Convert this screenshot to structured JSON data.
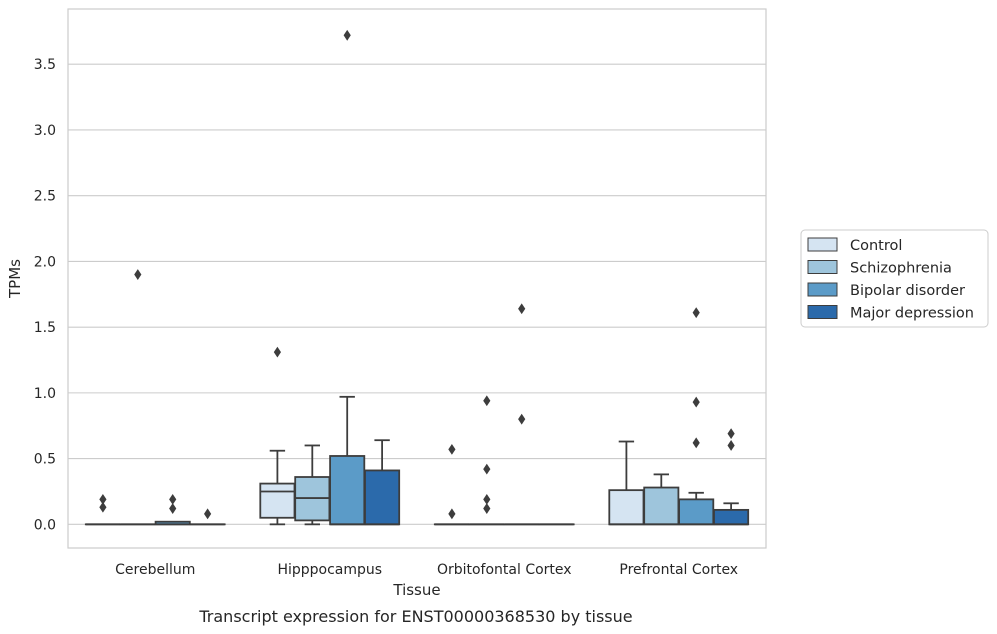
{
  "chart_data": {
    "type": "box",
    "xlabel": "Tissue",
    "ylabel": "TPMs",
    "caption": "Transcript expression for ENST00000368530 by tissue",
    "ylim": [
      -0.18,
      3.92
    ],
    "yticks": [
      0.0,
      0.5,
      1.0,
      1.5,
      2.0,
      2.5,
      3.0,
      3.5
    ],
    "ytick_labels": [
      "0.0",
      "0.5",
      "1.0",
      "1.5",
      "2.0",
      "2.5",
      "3.0",
      "3.5"
    ],
    "grid": "horizontal",
    "legend_position": "outside-right",
    "categories": [
      "Cerebellum",
      "Hipppocampus",
      "Orbitofontal Cortex",
      "Prefrontal Cortex"
    ],
    "series": [
      {
        "name": "Control",
        "color": "#d5e4f2",
        "boxes": [
          {
            "q1": 0.0,
            "median": 0.0,
            "q3": 0.0,
            "whislo": 0.0,
            "whishi": 0.0,
            "fliers": [
              0.13,
              0.19
            ]
          },
          {
            "q1": 0.05,
            "median": 0.25,
            "q3": 0.31,
            "whislo": 0.0,
            "whishi": 0.56,
            "fliers": [
              1.31
            ]
          },
          {
            "q1": 0.0,
            "median": 0.0,
            "q3": 0.0,
            "whislo": 0.0,
            "whishi": 0.0,
            "fliers": [
              0.08,
              0.57
            ]
          },
          {
            "q1": 0.0,
            "median": 0.0,
            "q3": 0.26,
            "whislo": 0.0,
            "whishi": 0.63,
            "fliers": []
          }
        ]
      },
      {
        "name": "Schizophrenia",
        "color": "#9ec5dc",
        "boxes": [
          {
            "q1": 0.0,
            "median": 0.0,
            "q3": 0.0,
            "whislo": 0.0,
            "whishi": 0.0,
            "fliers": [
              1.9
            ]
          },
          {
            "q1": 0.03,
            "median": 0.2,
            "q3": 0.36,
            "whislo": 0.0,
            "whishi": 0.6,
            "fliers": []
          },
          {
            "q1": 0.0,
            "median": 0.0,
            "q3": 0.0,
            "whislo": 0.0,
            "whishi": 0.0,
            "fliers": [
              0.12,
              0.19,
              0.42,
              0.94
            ]
          },
          {
            "q1": 0.0,
            "median": 0.0,
            "q3": 0.28,
            "whislo": 0.0,
            "whishi": 0.38,
            "fliers": []
          }
        ]
      },
      {
        "name": "Bipolar disorder",
        "color": "#5b9bc8",
        "boxes": [
          {
            "q1": 0.0,
            "median": 0.0,
            "q3": 0.02,
            "whislo": 0.0,
            "whishi": 0.02,
            "fliers": [
              0.12,
              0.19
            ]
          },
          {
            "q1": 0.0,
            "median": 0.0,
            "q3": 0.52,
            "whislo": 0.0,
            "whishi": 0.97,
            "fliers": [
              3.72
            ]
          },
          {
            "q1": 0.0,
            "median": 0.0,
            "q3": 0.0,
            "whislo": 0.0,
            "whishi": 0.0,
            "fliers": [
              0.8,
              1.64
            ]
          },
          {
            "q1": 0.0,
            "median": 0.0,
            "q3": 0.19,
            "whislo": 0.0,
            "whishi": 0.24,
            "fliers": [
              0.62,
              0.93,
              1.61
            ]
          }
        ]
      },
      {
        "name": "Major depression",
        "color": "#2b6aab",
        "boxes": [
          {
            "q1": 0.0,
            "median": 0.0,
            "q3": 0.0,
            "whislo": 0.0,
            "whishi": 0.0,
            "fliers": [
              0.08
            ]
          },
          {
            "q1": 0.0,
            "median": 0.0,
            "q3": 0.41,
            "whislo": 0.0,
            "whishi": 0.64,
            "fliers": []
          },
          {
            "q1": 0.0,
            "median": 0.0,
            "q3": 0.0,
            "whislo": 0.0,
            "whishi": 0.0,
            "fliers": []
          },
          {
            "q1": 0.0,
            "median": 0.0,
            "q3": 0.11,
            "whislo": 0.0,
            "whishi": 0.16,
            "fliers": [
              0.6,
              0.69
            ]
          }
        ]
      }
    ]
  }
}
